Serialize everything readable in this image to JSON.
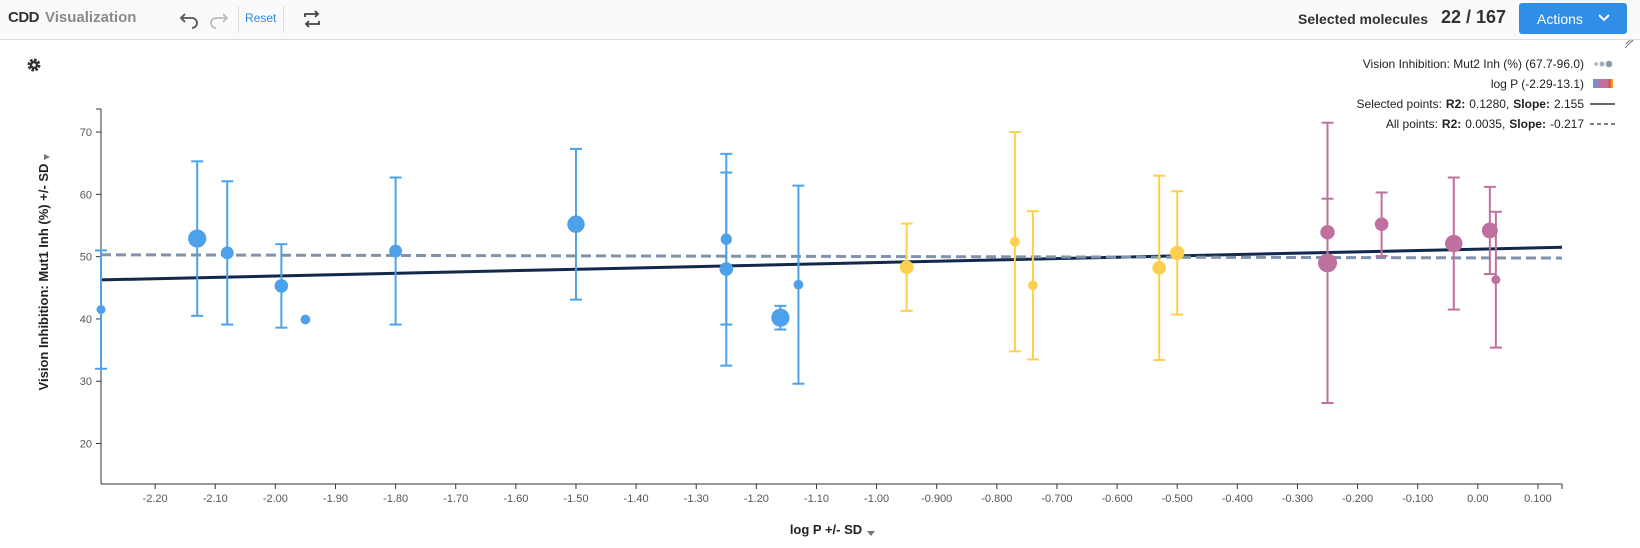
{
  "header": {
    "logo": "CDD",
    "app_name": "Visualization",
    "reset": "Reset",
    "selected_label": "Selected molecules",
    "selected_count": "22 / 167",
    "actions": "Actions"
  },
  "chart_data": {
    "type": "scatter",
    "x_label": "log P +/- SD",
    "y_label": "Vision Inhibition: Mut1 Inh (%) +/- SD",
    "size_legend": "Vision Inhibition: Mut2 Inh (%) (67.7-96.0)",
    "color_legend": "log P (-2.29-13.1)",
    "xlim": [
      -2.29,
      0.14
    ],
    "ylim": [
      13.5,
      73.7
    ],
    "xticks": [
      {
        "value": -2.2,
        "label": "-2.20"
      },
      {
        "value": -2.1,
        "label": "-2.10"
      },
      {
        "value": -2.0,
        "label": "-2.00"
      },
      {
        "value": -1.9,
        "label": "-1.90"
      },
      {
        "value": -1.8,
        "label": "-1.80"
      },
      {
        "value": -1.7,
        "label": "-1.70"
      },
      {
        "value": -1.6,
        "label": "-1.60"
      },
      {
        "value": -1.5,
        "label": "-1.50"
      },
      {
        "value": -1.4,
        "label": "-1.40"
      },
      {
        "value": -1.3,
        "label": "-1.30"
      },
      {
        "value": -1.2,
        "label": "-1.20"
      },
      {
        "value": -1.1,
        "label": "-1.10"
      },
      {
        "value": -1.0,
        "label": "-1.00"
      },
      {
        "value": -0.9,
        "label": "-0.900"
      },
      {
        "value": -0.8,
        "label": "-0.800"
      },
      {
        "value": -0.7,
        "label": "-0.700"
      },
      {
        "value": -0.6,
        "label": "-0.600"
      },
      {
        "value": -0.5,
        "label": "-0.500"
      },
      {
        "value": -0.4,
        "label": "-0.400"
      },
      {
        "value": -0.3,
        "label": "-0.300"
      },
      {
        "value": -0.2,
        "label": "-0.200"
      },
      {
        "value": -0.1,
        "label": "-0.100"
      },
      {
        "value": 0,
        "label": "0.00"
      },
      {
        "value": 0.1,
        "label": "0.100"
      }
    ],
    "yticks": [
      20,
      30,
      40,
      50,
      60,
      70
    ],
    "series": [
      {
        "color": "#4da1ea",
        "x": [
          -2.29,
          -2.13,
          -2.08,
          -1.99,
          -1.95,
          -1.8,
          -1.5,
          -1.25,
          -1.25,
          -1.16,
          -1.13
        ],
        "values": [
          41.5,
          52.9,
          50.6,
          45.3,
          39.9,
          50.9,
          55.2,
          52.8,
          48.0,
          40.2,
          45.5
        ],
        "errors": [
          9.5,
          12.4,
          11.5,
          6.7,
          null,
          11.8,
          12.1,
          13.7,
          15.5,
          1.9,
          15.9
        ],
        "sizes": [
          70,
          94,
          80,
          82,
          72,
          80,
          92,
          76,
          82,
          94,
          72
        ]
      },
      {
        "color": "#fcd04e",
        "x": [
          -0.95,
          -0.77,
          -0.74,
          -0.53,
          -0.5
        ],
        "values": [
          48.3,
          52.4,
          45.4,
          48.2,
          50.6
        ],
        "errors": [
          7.0,
          17.6,
          11.9,
          14.8,
          9.9
        ],
        "sizes": [
          82,
          72,
          72,
          82,
          84
        ]
      },
      {
        "color": "#c0709e",
        "x": [
          -0.25,
          -0.25,
          -0.16,
          -0.04,
          0.02,
          0.03
        ],
        "values": [
          53.9,
          49.0,
          55.2,
          52.1,
          54.2,
          46.3
        ],
        "errors": [
          5.4,
          22.5,
          5.1,
          10.6,
          7.0,
          10.9
        ],
        "sizes": [
          84,
          96,
          82,
          92,
          88,
          70
        ]
      }
    ],
    "fits": [
      {
        "name": "Selected points:",
        "r2": {
          "value": 0.128,
          "label": "0.1280"
        },
        "slope": 2.155,
        "intercept": 51.2,
        "color": "#13294b",
        "dashed": false
      },
      {
        "name": "All points:",
        "r2": {
          "value": 0.0035,
          "label": "0.0035"
        },
        "slope": -0.217,
        "intercept": 49.8,
        "color": "#7f93ab",
        "dashed": true
      }
    ],
    "r2_label": "R2:",
    "slope_label": "Slope:",
    "separator": ","
  }
}
